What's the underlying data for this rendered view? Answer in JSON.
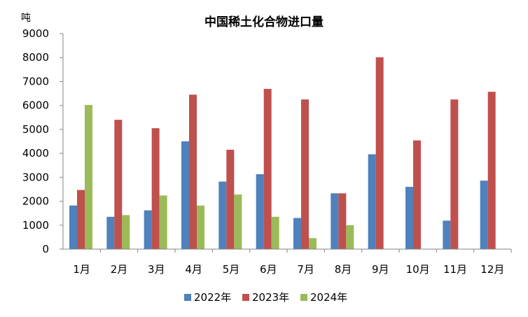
{
  "chart_data": {
    "type": "bar",
    "title": "中国稀土化合物进口量",
    "ylabel": "吨",
    "xlabel": "",
    "ylim": [
      0,
      9000
    ],
    "yticks": [
      0,
      1000,
      2000,
      3000,
      4000,
      5000,
      6000,
      7000,
      8000,
      9000
    ],
    "categories": [
      "1月",
      "2月",
      "3月",
      "4月",
      "5月",
      "6月",
      "7月",
      "8月",
      "9月",
      "10月",
      "11月",
      "12月"
    ],
    "series": [
      {
        "name": "2022年",
        "color": "#4f81bd",
        "values": [
          1820,
          1350,
          1620,
          4500,
          2820,
          3130,
          1300,
          2330,
          3960,
          2600,
          1190,
          2860
        ]
      },
      {
        "name": "2023年",
        "color": "#c0504d",
        "values": [
          2470,
          5400,
          5050,
          6450,
          4150,
          6690,
          6250,
          2330,
          8010,
          4540,
          6250,
          6570
        ]
      },
      {
        "name": "2024年",
        "color": "#9bbb59",
        "values": [
          6020,
          1420,
          2240,
          1820,
          2280,
          1350,
          460,
          1000,
          null,
          null,
          null,
          null
        ]
      }
    ],
    "legend_position": "bottom",
    "grid": false
  }
}
